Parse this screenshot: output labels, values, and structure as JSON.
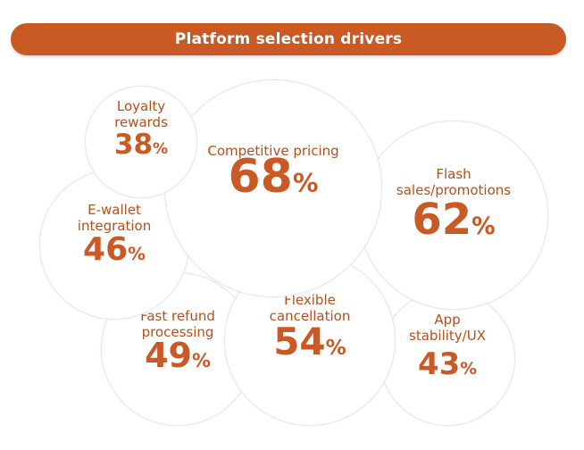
{
  "chart_data": {
    "type": "bubble",
    "title": "Platform selection drivers",
    "unit": "%",
    "colors": {
      "accent": "#c95a26",
      "label": "#b54f1e"
    },
    "items": [
      {
        "label": "Competitive pricing",
        "value": 68
      },
      {
        "label": "Flash sales/promotions",
        "value": 62
      },
      {
        "label": "Flexible cancellation",
        "value": 54
      },
      {
        "label": "Fast refund processing",
        "value": 49
      },
      {
        "label": "E-wallet integration",
        "value": 46
      },
      {
        "label": "App stability/UX",
        "value": 43
      },
      {
        "label": "Loyalty rewards",
        "value": 38
      }
    ]
  }
}
